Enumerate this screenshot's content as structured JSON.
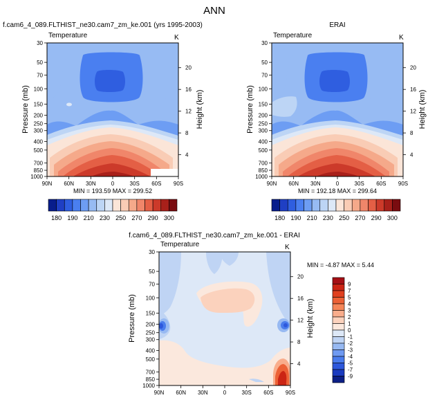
{
  "figure": {
    "title": "ANN"
  },
  "chart_data": [
    {
      "type": "heatmap",
      "title": "f.cam6_4_089.FLTHIST_ne30.cam7_zm_ke.001 (yrs 1995-2003)",
      "variable": "Temperature",
      "units": "K",
      "xlabel": "",
      "ylabel": "Pressure (mb)",
      "y2label": "Height (km)",
      "x_ticks": [
        "90N",
        "60N",
        "30N",
        "0",
        "30S",
        "60S",
        "90S"
      ],
      "pressure_ticks": [
        30,
        50,
        70,
        100,
        150,
        200,
        250,
        300,
        400,
        500,
        700,
        850,
        1000
      ],
      "height_ticks": [
        20,
        16,
        12,
        8,
        4
      ],
      "y_scale": "log",
      "ylim": [
        1000,
        30
      ],
      "min": 193.59,
      "max": 299.52,
      "min_max_text": "MIN = 193.59   MAX = 299.52"
    },
    {
      "type": "heatmap",
      "title": "ERAI",
      "variable": "Temperature",
      "units": "K",
      "xlabel": "",
      "ylabel": "Pressure (mb)",
      "y2label": "Height (km)",
      "x_ticks": [
        "90N",
        "60N",
        "30N",
        "0",
        "30S",
        "60S",
        "90S"
      ],
      "pressure_ticks": [
        30,
        50,
        70,
        100,
        150,
        200,
        250,
        300,
        400,
        500,
        700,
        850,
        1000
      ],
      "height_ticks": [
        20,
        16,
        12,
        8,
        4
      ],
      "y_scale": "log",
      "ylim": [
        1000,
        30
      ],
      "min": 192.18,
      "max": 299.64,
      "min_max_text": "MIN = 192.18   MAX = 299.64"
    },
    {
      "type": "heatmap",
      "title": "f.cam6_4_089.FLTHIST_ne30.cam7_zm_ke.001 - ERAI",
      "variable": "Temperature",
      "units": "K",
      "xlabel": "",
      "ylabel": "Pressure (mb)",
      "y2label": "Height (km)",
      "x_ticks": [
        "90N",
        "60N",
        "30N",
        "0",
        "30S",
        "60S",
        "90S"
      ],
      "pressure_ticks": [
        30,
        50,
        70,
        100,
        150,
        200,
        250,
        300,
        400,
        500,
        700,
        850,
        1000
      ],
      "height_ticks": [
        20,
        16,
        12,
        8,
        4
      ],
      "y_scale": "log",
      "ylim": [
        1000,
        30
      ],
      "min": -4.87,
      "max": 5.44,
      "min_max_text": "MIN = -4.87   MAX =  5.44"
    }
  ],
  "colorbars": {
    "temperature": {
      "orientation": "horizontal",
      "labels": [
        "180",
        "190",
        "210",
        "230",
        "250",
        "270",
        "290",
        "300"
      ],
      "colors": [
        "#081d8c",
        "#1f3fc4",
        "#2f5ee0",
        "#4a7ff0",
        "#6d9df3",
        "#97bbf3",
        "#bdd5f5",
        "#dde8f7",
        "#fbe5d8",
        "#f9ccb5",
        "#f5a98a",
        "#f0866a",
        "#e45f45",
        "#cc3a2a",
        "#a8201a",
        "#7a0c10"
      ]
    },
    "difference": {
      "orientation": "vertical",
      "labels": [
        "9",
        "7",
        "5",
        "4",
        "3",
        "2",
        "1",
        "0",
        "-1",
        "-2",
        "-3",
        "-4",
        "-5",
        "-7",
        "-9"
      ],
      "colors": [
        "#a50f15",
        "#cb2414",
        "#e0401f",
        "#ec6136",
        "#f58659",
        "#f9ad8c",
        "#fbd2bd",
        "#fbe8dd",
        "#dde8f7",
        "#bfd4f4",
        "#97b9f2",
        "#6f9af2",
        "#4a7ced",
        "#2e58dc",
        "#1b3bbf",
        "#0c1f86"
      ]
    }
  }
}
